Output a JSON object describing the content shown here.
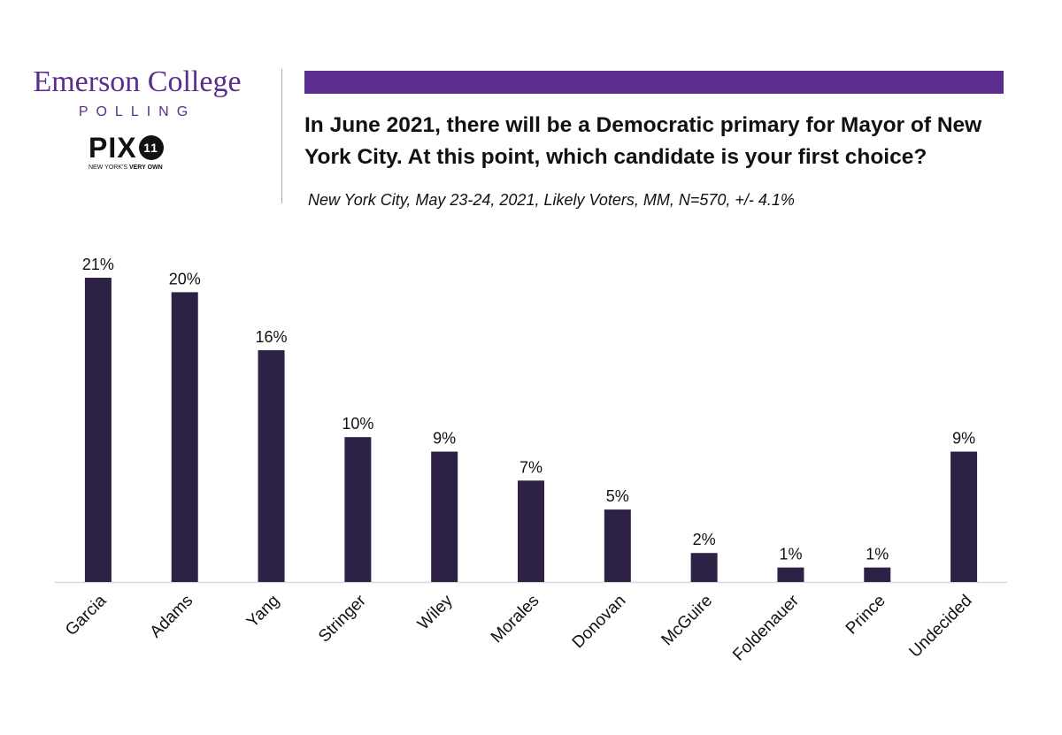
{
  "header": {
    "brand_name": "Emerson College",
    "brand_sub": "POLLING",
    "partner_logo": "PIX",
    "partner_logo_number": "11",
    "partner_tagline_a": "NEW YORK'S",
    "partner_tagline_b": "VERY OWN",
    "question": "In June 2021, there will be a Democratic primary for Mayor of New York City. At this point, which candidate is your first choice?",
    "subtitle": "New York City, May 23-24, 2021, Likely Voters, MM, N=570, +/- 4.1%"
  },
  "colors": {
    "brand_purple": "#5b2d8e",
    "bar": "#2d2245",
    "axis": "#d9d9d9",
    "text": "#111111"
  },
  "chart_data": {
    "type": "bar",
    "title": "In June 2021, there will be a Democratic primary for Mayor of New York City. At this point, which candidate is your first choice?",
    "categories": [
      "Garcia",
      "Adams",
      "Yang",
      "Stringer",
      "Wiley",
      "Morales",
      "Donovan",
      "McGuire",
      "Foldenauer",
      "Prince",
      "Undecided"
    ],
    "values": [
      21,
      20,
      16,
      10,
      9,
      7,
      5,
      2,
      1,
      1,
      9
    ],
    "data_labels": [
      "21%",
      "20%",
      "16%",
      "10%",
      "9%",
      "7%",
      "5%",
      "2%",
      "1%",
      "1%",
      "9%"
    ],
    "unit": "%",
    "ylim": [
      0,
      21
    ],
    "grid": false,
    "legend": "none"
  }
}
